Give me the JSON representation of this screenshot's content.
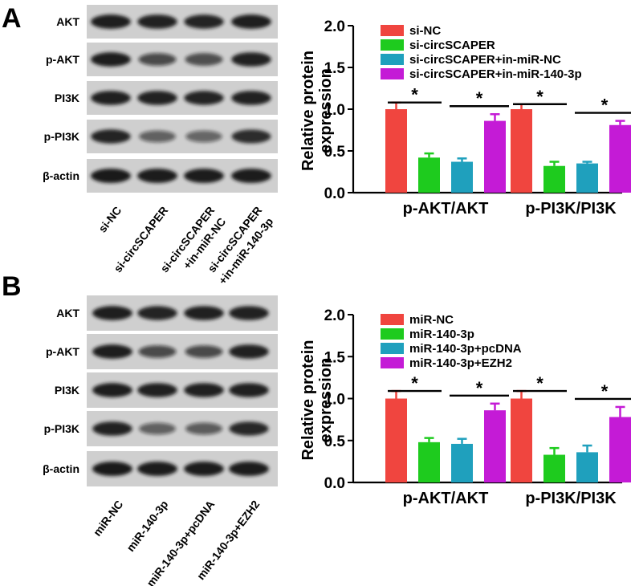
{
  "colors": {
    "red": "#f0453f",
    "green": "#1ecb1e",
    "teal": "#1fa0bd",
    "magenta": "#c41bd6",
    "axis": "#000000",
    "band": "#161616",
    "blot_bg": "#cfcfcf"
  },
  "panels": [
    {
      "letter": "A",
      "blot": {
        "rows": [
          "AKT",
          "p-AKT",
          "PI3K",
          "p-PI3K",
          "β-actin"
        ],
        "lanes": [
          "si-NC",
          "si-circSCAPER",
          "si-circSCAPER\n+in-miR-NC",
          "si-circSCAPER\n+in-miR-140-3p"
        ],
        "intensity": [
          [
            0.95,
            0.92,
            0.9,
            0.95
          ],
          [
            0.95,
            0.6,
            0.62,
            0.92
          ],
          [
            0.93,
            0.92,
            0.9,
            0.92
          ],
          [
            0.9,
            0.45,
            0.42,
            0.85
          ],
          [
            0.97,
            0.96,
            0.96,
            0.96
          ]
        ]
      },
      "chart_data": {
        "type": "bar",
        "categories": [
          "p-AKT/AKT",
          "p-PI3K/PI3K"
        ],
        "ylabel": "Relative protein expression",
        "ylim": [
          0,
          2.0
        ],
        "yticks": [
          "0.0",
          "0.5",
          "1.0",
          "1.5",
          "2.0"
        ],
        "series": [
          {
            "name": "si-NC",
            "color": "#f0453f",
            "values": [
              1.0,
              1.0
            ],
            "errors": [
              0.08,
              0.06
            ]
          },
          {
            "name": "si-circSCAPER",
            "color": "#1ecb1e",
            "values": [
              0.42,
              0.32
            ],
            "errors": [
              0.05,
              0.05
            ]
          },
          {
            "name": "si-circSCAPER+in-miR-NC",
            "color": "#1fa0bd",
            "values": [
              0.37,
              0.35
            ],
            "errors": [
              0.04,
              0.02
            ]
          },
          {
            "name": "si-circSCAPER+in-miR-140-3p",
            "color": "#c41bd6",
            "values": [
              0.86,
              0.81
            ],
            "errors": [
              0.08,
              0.05
            ]
          }
        ],
        "significance": "*",
        "legend": "top-right"
      }
    },
    {
      "letter": "B",
      "blot": {
        "rows": [
          "AKT",
          "p-AKT",
          "PI3K",
          "p-PI3K",
          "β-actin"
        ],
        "lanes": [
          "miR-NC",
          "miR-140-3p",
          "miR-140-3p+pcDNA",
          "miR-140-3p+EZH2"
        ],
        "intensity": [
          [
            0.95,
            0.9,
            0.93,
            0.92
          ],
          [
            0.95,
            0.6,
            0.6,
            0.92
          ],
          [
            0.95,
            0.93,
            0.93,
            0.93
          ],
          [
            0.92,
            0.45,
            0.48,
            0.88
          ],
          [
            0.97,
            0.96,
            0.96,
            0.96
          ]
        ]
      },
      "chart_data": {
        "type": "bar",
        "categories": [
          "p-AKT/AKT",
          "p-PI3K/PI3K"
        ],
        "ylabel": "Relative protein expression",
        "ylim": [
          0,
          2.0
        ],
        "yticks": [
          "0.0",
          "0.5",
          "1.0",
          "1.5",
          "2.0"
        ],
        "series": [
          {
            "name": "miR-NC",
            "color": "#f0453f",
            "values": [
              1.0,
              1.0
            ],
            "errors": [
              0.09,
              0.09
            ]
          },
          {
            "name": "miR-140-3p",
            "color": "#1ecb1e",
            "values": [
              0.48,
              0.33
            ],
            "errors": [
              0.05,
              0.08
            ]
          },
          {
            "name": "miR-140-3p+pcDNA",
            "color": "#1fa0bd",
            "values": [
              0.46,
              0.36
            ],
            "errors": [
              0.06,
              0.08
            ]
          },
          {
            "name": "miR-140-3p+EZH2",
            "color": "#c41bd6",
            "values": [
              0.86,
              0.78
            ],
            "errors": [
              0.08,
              0.12
            ]
          }
        ],
        "significance": "*",
        "legend": "top-right"
      }
    }
  ]
}
